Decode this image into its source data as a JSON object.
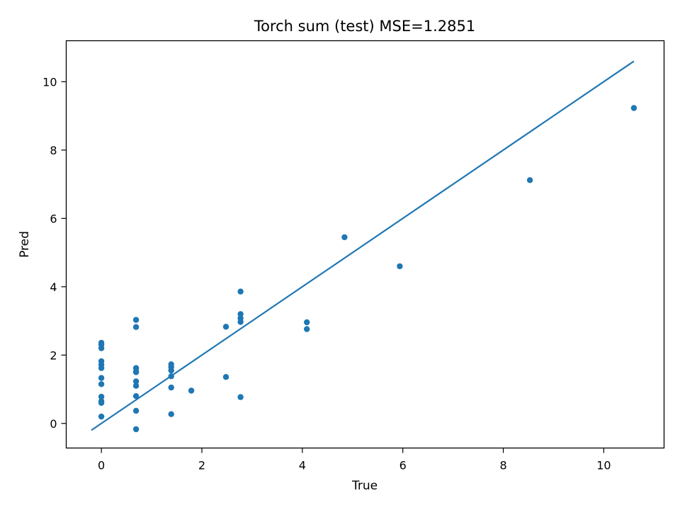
{
  "chart_data": {
    "type": "scatter",
    "title": "Torch sum (test) MSE=1.2851",
    "xlabel": "True",
    "ylabel": "Pred",
    "xlim": [
      -0.7,
      11.2
    ],
    "ylim": [
      -0.72,
      11.2
    ],
    "xticks": [
      0,
      2,
      4,
      6,
      8,
      10
    ],
    "yticks": [
      0,
      2,
      4,
      6,
      8,
      10
    ],
    "grid": false,
    "colors": {
      "points": "#1f77b4",
      "line": "#1f77b4"
    },
    "series": [
      {
        "type": "scatter",
        "points": [
          [
            0,
            0.2
          ],
          [
            0,
            0.6
          ],
          [
            0,
            0.65
          ],
          [
            0,
            0.78
          ],
          [
            0,
            1.15
          ],
          [
            0,
            1.33
          ],
          [
            0,
            1.62
          ],
          [
            0,
            1.72
          ],
          [
            0,
            1.82
          ],
          [
            0,
            2.2
          ],
          [
            0,
            2.3
          ],
          [
            0,
            2.36
          ],
          [
            0.69,
            -0.17
          ],
          [
            0.69,
            0.37
          ],
          [
            0.69,
            0.8
          ],
          [
            0.69,
            1.1
          ],
          [
            0.69,
            1.23
          ],
          [
            0.69,
            1.5
          ],
          [
            0.69,
            1.52
          ],
          [
            0.69,
            1.62
          ],
          [
            0.69,
            2.82
          ],
          [
            0.69,
            3.03
          ],
          [
            1.39,
            0.27
          ],
          [
            1.39,
            1.05
          ],
          [
            1.39,
            1.38
          ],
          [
            1.39,
            1.55
          ],
          [
            1.39,
            1.65
          ],
          [
            1.39,
            1.73
          ],
          [
            1.79,
            0.96
          ],
          [
            2.48,
            1.36
          ],
          [
            2.48,
            2.83
          ],
          [
            2.77,
            0.77
          ],
          [
            2.77,
            2.97
          ],
          [
            2.77,
            3.08
          ],
          [
            2.77,
            3.2
          ],
          [
            2.77,
            3.86
          ],
          [
            4.09,
            2.76
          ],
          [
            4.09,
            2.96
          ],
          [
            4.84,
            5.45
          ],
          [
            5.94,
            4.6
          ],
          [
            8.53,
            7.12
          ],
          [
            10.6,
            9.23
          ]
        ]
      },
      {
        "type": "line",
        "points": [
          [
            -0.2,
            -0.2
          ],
          [
            10.6,
            10.6
          ]
        ]
      }
    ]
  }
}
